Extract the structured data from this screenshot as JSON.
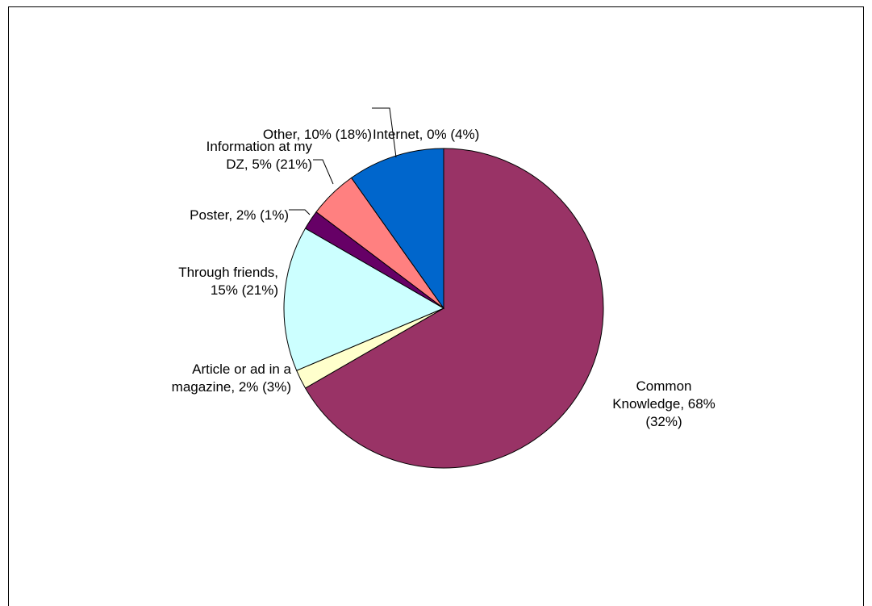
{
  "chart_data": {
    "type": "pie",
    "start_angle_deg": 0,
    "direction": "clockwise",
    "legend": "none",
    "slices": [
      {
        "name": "Common Knowledge",
        "value": 68,
        "color": "#993366",
        "label_lines": [
          "Common",
          "Knowledge, 68%",
          "(32%)"
        ]
      },
      {
        "name": "Article or ad in a magazine",
        "value": 2,
        "color": "#ffffcc",
        "label_lines": [
          "Article or ad in a",
          "magazine, 2% (3%)"
        ]
      },
      {
        "name": "Through friends",
        "value": 15,
        "color": "#ccffff",
        "label_lines": [
          "Through friends,",
          "15% (21%)"
        ]
      },
      {
        "name": "Poster",
        "value": 2,
        "color": "#660066",
        "label_lines": [
          "Poster, 2% (1%)"
        ]
      },
      {
        "name": "Information at my DZ",
        "value": 5,
        "color": "#ff8080",
        "label_lines": [
          "Information at my",
          "DZ, 5% (21%)"
        ]
      },
      {
        "name": "Other",
        "value": 10,
        "color": "#0066cc",
        "label_lines": [
          "Other, 10% (18%)"
        ]
      },
      {
        "name": "Internet",
        "value": 0,
        "color": "#ffffff",
        "label_lines": [
          "Internet, 0% (4%)"
        ]
      }
    ]
  }
}
